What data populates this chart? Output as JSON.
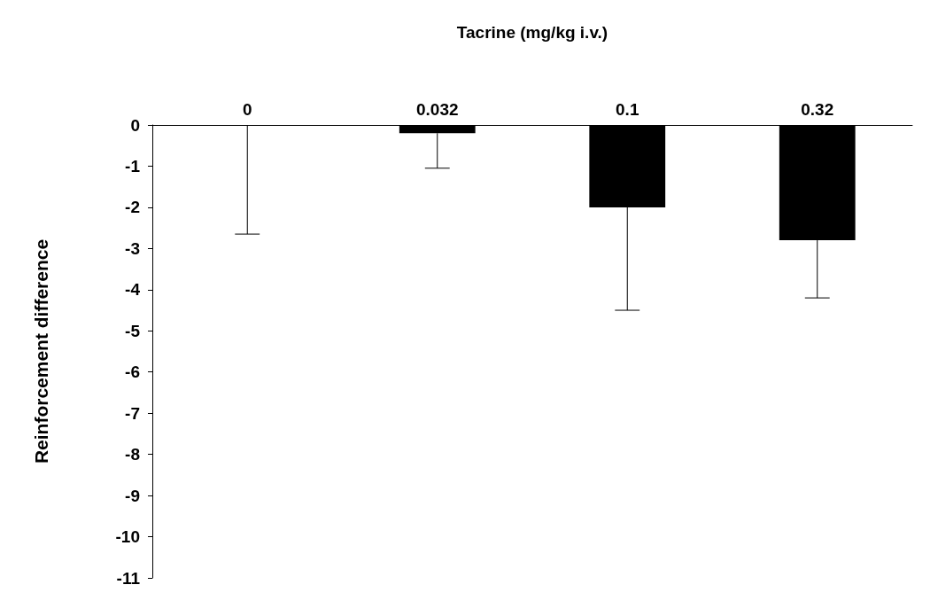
{
  "chart_data": {
    "type": "bar",
    "xlabel": "Tacrine (mg/kg i.v.)",
    "ylabel": "Reinforcement difference",
    "categories": [
      "0",
      "0.032",
      "0.1",
      "0.32"
    ],
    "values": [
      0,
      -0.2,
      -2.0,
      -2.8
    ],
    "errors": [
      [
        -2.65,
        0
      ],
      [
        -1.05,
        -0.2
      ],
      [
        -4.5,
        -2.0
      ],
      [
        -4.2,
        -2.8
      ]
    ],
    "color": "#000000",
    "ylim": [
      -11,
      0
    ],
    "yticks": [
      0,
      -1,
      -2,
      -3,
      -4,
      -5,
      -6,
      -7,
      -8,
      -9,
      -10,
      -11
    ],
    "grid": false
  }
}
